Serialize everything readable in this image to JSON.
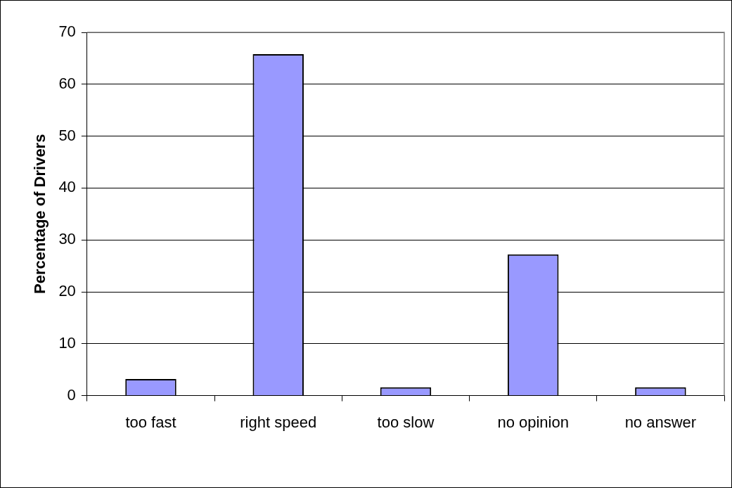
{
  "chart_data": {
    "type": "bar",
    "ylabel": "Percentage of Drivers",
    "categories": [
      "too fast",
      "right speed",
      "too slow",
      "no opinion",
      "no answer"
    ],
    "values": [
      3.2,
      65.8,
      1.6,
      27.2,
      1.6
    ],
    "color": "#9999ff",
    "ylim": [
      0,
      70
    ],
    "yticks": [
      0,
      10,
      20,
      30,
      40,
      50,
      60,
      70
    ],
    "grid": "y",
    "legend": false
  }
}
